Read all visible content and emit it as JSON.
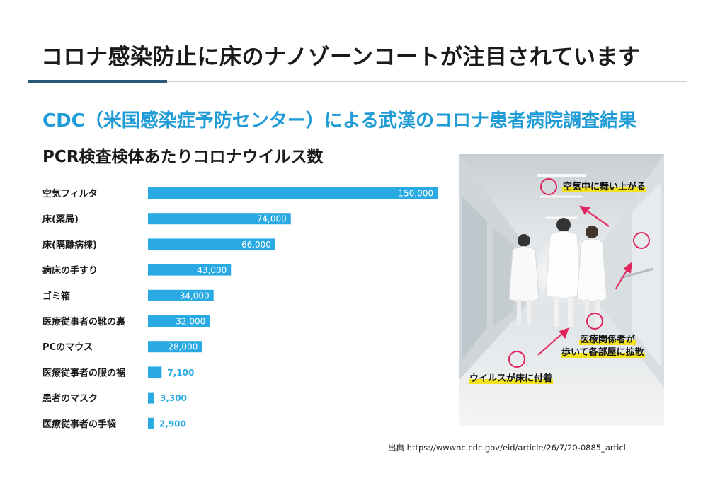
{
  "header": {
    "title": "コロナ感染防止に床のナノゾーンコートが注目されています",
    "subtitle": "CDC（米国感染症予防センター）による武漢のコロナ患者病院調査結果"
  },
  "chart_data": {
    "type": "bar",
    "orientation": "horizontal",
    "title": "PCR検査検体あたりコロナウイルス数",
    "xlabel": "",
    "ylabel": "",
    "categories": [
      "空気フィルタ",
      "床(薬局)",
      "床(隔離病棟)",
      "病床の手すり",
      "ゴミ箱",
      "医療従事者の靴の裏",
      "PCのマウス",
      "医療従事者の服の裾",
      "患者のマスク",
      "医療従事者の手袋"
    ],
    "values": [
      150000,
      74000,
      66000,
      43000,
      34000,
      32000,
      28000,
      7100,
      3300,
      2900
    ],
    "value_labels": [
      "150,000",
      "74,000",
      "66,000",
      "43,000",
      "34,000",
      "32,000",
      "28,000",
      "7,100",
      "3,300",
      "2,900"
    ],
    "xlim": [
      0,
      150000
    ],
    "grid": false,
    "bar_color": "#29aae2"
  },
  "photo": {
    "callouts": {
      "air": "空気中に舞い上がる",
      "spread_line1": "医療関係者が",
      "spread_line2": "歩いて各部屋に拡散",
      "floor": "ウイルスが床に付着"
    },
    "accent_color": "#e0245e",
    "highlight_color": "#f3e21e"
  },
  "source": {
    "text": "出典  https://wwwnc.cdc.gov/eid/article/26/7/20-0885_articl"
  }
}
